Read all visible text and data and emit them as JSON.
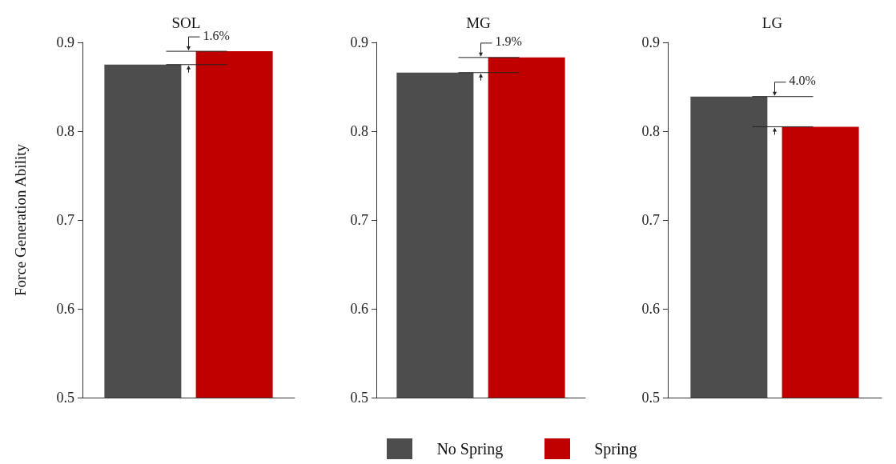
{
  "chart_data": [
    {
      "type": "bar",
      "title": "SOL",
      "ylabel": "Force Generation Ability",
      "categories": [
        null
      ],
      "series": [
        {
          "name": "No Spring",
          "color": "#4d4d4d",
          "values": [
            0.875
          ]
        },
        {
          "name": "Spring",
          "color": "#c00000",
          "values": [
            0.89
          ]
        }
      ],
      "ylim": [
        0.5,
        0.9
      ],
      "yticks": [
        0.5,
        0.6,
        0.7,
        0.8,
        0.9
      ],
      "grid": false,
      "legend": "bottom",
      "annotations": [
        "1.6%"
      ]
    },
    {
      "type": "bar",
      "title": "MG",
      "categories": [
        null
      ],
      "series": [
        {
          "color": "#4d4d4d",
          "values": [
            0.866
          ]
        },
        {
          "color": "#c00000",
          "values": [
            0.883
          ]
        }
      ],
      "ylim": [
        0.5,
        0.9
      ],
      "yticks": [
        0.5,
        0.6,
        0.7,
        0.8,
        0.9
      ],
      "grid": false,
      "annotations": [
        "1.9%"
      ]
    },
    {
      "type": "bar",
      "title": "LG",
      "categories": [
        null
      ],
      "series": [
        {
          "color": "#4d4d4d",
          "values": [
            0.839
          ]
        },
        {
          "color": "#c00000",
          "values": [
            0.805
          ]
        }
      ],
      "ylim": [
        0.5,
        0.9
      ],
      "yticks": [
        0.5,
        0.6,
        0.7,
        0.8,
        0.9
      ],
      "grid": false,
      "annotations": [
        "4.0%"
      ]
    }
  ]
}
